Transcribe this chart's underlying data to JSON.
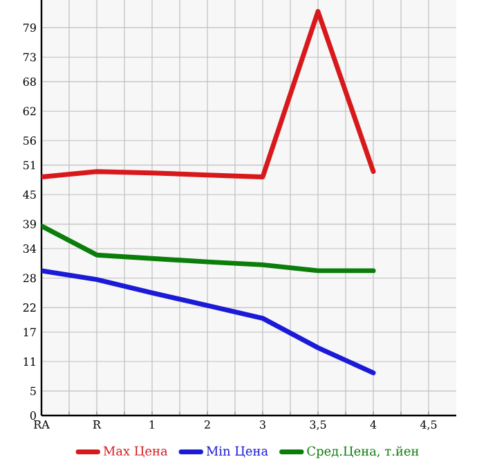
{
  "chart_data": {
    "type": "line",
    "categories": [
      "RA",
      "R",
      "1",
      "2",
      "3",
      "3,5",
      "4",
      "4,5"
    ],
    "series": [
      {
        "name": "Max Цена",
        "color": "#d7191c",
        "values": [
          48.6,
          49.7,
          49.4,
          49.0,
          48.6,
          82.3,
          49.7,
          null
        ]
      },
      {
        "name": "Min Цена",
        "color": "#1a1ad7",
        "values": [
          29.5,
          27.7,
          25.0,
          22.4,
          19.8,
          13.8,
          8.7,
          null
        ]
      },
      {
        "name": "Сред.Цена, т.йен",
        "color": "#0a7d0a",
        "values": [
          38.6,
          32.7,
          32.0,
          31.3,
          30.7,
          29.5,
          29.5,
          null
        ]
      }
    ],
    "ylim": [
      0,
      84.64
    ],
    "yticks": [
      0,
      5,
      11,
      17,
      22,
      28,
      34,
      39,
      45,
      51,
      56,
      62,
      68,
      73,
      79
    ],
    "grid": true,
    "legend": "bottom",
    "marker": "none",
    "line_style": "solid"
  }
}
